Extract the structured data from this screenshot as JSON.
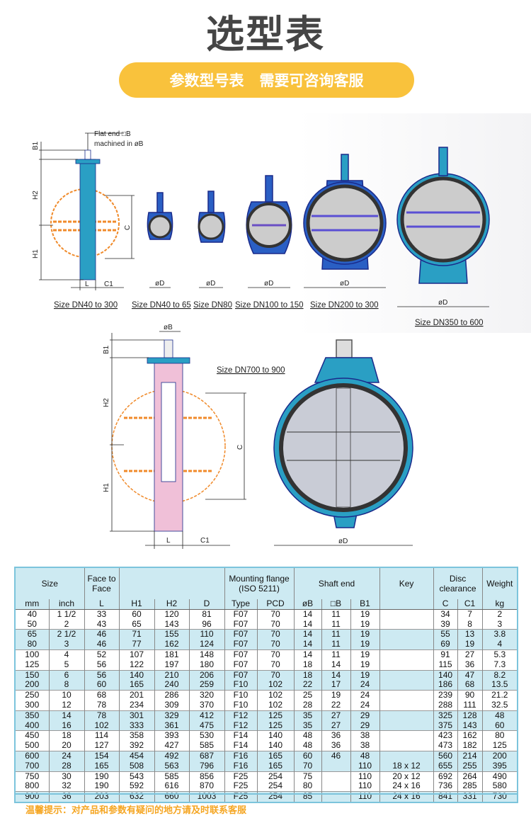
{
  "header": {
    "title": "选型表",
    "banner_left": "参数型号表",
    "banner_right": "需要可咨询客服",
    "banner_color": "#f9c23c"
  },
  "diagrams": {
    "flat_end": "Flat end □B",
    "machined": "machined in øB",
    "dims": {
      "B1": "B1",
      "H2": "H2",
      "H1": "H1",
      "C": "C",
      "L": "L",
      "C1": "C1",
      "D": "øD",
      "B": "øB"
    },
    "sizes": [
      "Size DN40 to 300",
      "Size DN40 to 65",
      "Size DN80",
      "Size DN100 to 150",
      "Size DN200 to 300",
      "Size DN350 to 600",
      "Size DN700 to 900"
    ],
    "colors": {
      "body": "#2a9fc4",
      "outline": "#1a2a8a",
      "disc": "#f08a2a",
      "liner": "#333333"
    }
  },
  "table": {
    "group_headers": [
      "Size",
      "Face to Face",
      "",
      "Mounting flange (ISO 5211)",
      "Shaft end",
      "Key",
      "Disc clearance",
      "Weight"
    ],
    "sub_headers": [
      "mm",
      "inch",
      "L",
      "H1",
      "H2",
      "D",
      "Type",
      "PCD",
      "øB",
      "□B",
      "B1",
      "",
      "C",
      "C1",
      "kg"
    ],
    "rows": [
      [
        "40",
        "1 1/2",
        "33",
        "60",
        "120",
        "81",
        "F07",
        "70",
        "14",
        "11",
        "19",
        "",
        "34",
        "7",
        "2"
      ],
      [
        "50",
        "2",
        "43",
        "65",
        "143",
        "96",
        "F07",
        "70",
        "14",
        "11",
        "19",
        "",
        "39",
        "8",
        "3"
      ],
      [
        "65",
        "2 1/2",
        "46",
        "71",
        "155",
        "110",
        "F07",
        "70",
        "14",
        "11",
        "19",
        "",
        "55",
        "13",
        "3.8"
      ],
      [
        "80",
        "3",
        "46",
        "77",
        "162",
        "124",
        "F07",
        "70",
        "14",
        "11",
        "19",
        "",
        "69",
        "19",
        "4"
      ],
      [
        "100",
        "4",
        "52",
        "107",
        "181",
        "148",
        "F07",
        "70",
        "14",
        "11",
        "19",
        "",
        "91",
        "27",
        "5.3"
      ],
      [
        "125",
        "5",
        "56",
        "122",
        "197",
        "180",
        "F07",
        "70",
        "18",
        "14",
        "19",
        "",
        "115",
        "36",
        "7.3"
      ],
      [
        "150",
        "6",
        "56",
        "140",
        "210",
        "206",
        "F07",
        "70",
        "18",
        "14",
        "19",
        "",
        "140",
        "47",
        "8.2"
      ],
      [
        "200",
        "8",
        "60",
        "165",
        "240",
        "259",
        "F10",
        "102",
        "22",
        "17",
        "24",
        "",
        "186",
        "68",
        "13.5"
      ],
      [
        "250",
        "10",
        "68",
        "201",
        "286",
        "320",
        "F10",
        "102",
        "25",
        "19",
        "24",
        "",
        "239",
        "90",
        "21.2"
      ],
      [
        "300",
        "12",
        "78",
        "234",
        "309",
        "370",
        "F10",
        "102",
        "28",
        "22",
        "24",
        "",
        "288",
        "111",
        "32.5"
      ],
      [
        "350",
        "14",
        "78",
        "301",
        "329",
        "412",
        "F12",
        "125",
        "35",
        "27",
        "29",
        "",
        "325",
        "128",
        "48"
      ],
      [
        "400",
        "16",
        "102",
        "333",
        "361",
        "475",
        "F12",
        "125",
        "35",
        "27",
        "29",
        "",
        "375",
        "143",
        "60"
      ],
      [
        "450",
        "18",
        "114",
        "358",
        "393",
        "530",
        "F14",
        "140",
        "48",
        "36",
        "38",
        "",
        "423",
        "162",
        "80"
      ],
      [
        "500",
        "20",
        "127",
        "392",
        "427",
        "585",
        "F14",
        "140",
        "48",
        "36",
        "38",
        "",
        "473",
        "182",
        "125"
      ],
      [
        "600",
        "24",
        "154",
        "454",
        "492",
        "687",
        "F16",
        "165",
        "60",
        "46",
        "48",
        "",
        "560",
        "214",
        "200"
      ],
      [
        "700",
        "28",
        "165",
        "508",
        "563",
        "796",
        "F16",
        "165",
        "70",
        "",
        "110",
        "18 x 12",
        "655",
        "255",
        "395"
      ],
      [
        "750",
        "30",
        "190",
        "543",
        "585",
        "856",
        "F25",
        "254",
        "75",
        "",
        "110",
        "20 x 12",
        "692",
        "264",
        "490"
      ],
      [
        "800",
        "32",
        "190",
        "592",
        "616",
        "870",
        "F25",
        "254",
        "80",
        "",
        "110",
        "24 x 16",
        "736",
        "285",
        "580"
      ],
      [
        "900",
        "36",
        "203",
        "632",
        "660",
        "1003",
        "F25",
        "254",
        "85",
        "",
        "110",
        "24 x 16",
        "841",
        "331",
        "730"
      ]
    ],
    "header_color": "#cdeaf2"
  },
  "footer": {
    "note": "温馨提示：对产品和参数有疑问的地方请及时联系客服",
    "note_color": "#f5a623"
  }
}
